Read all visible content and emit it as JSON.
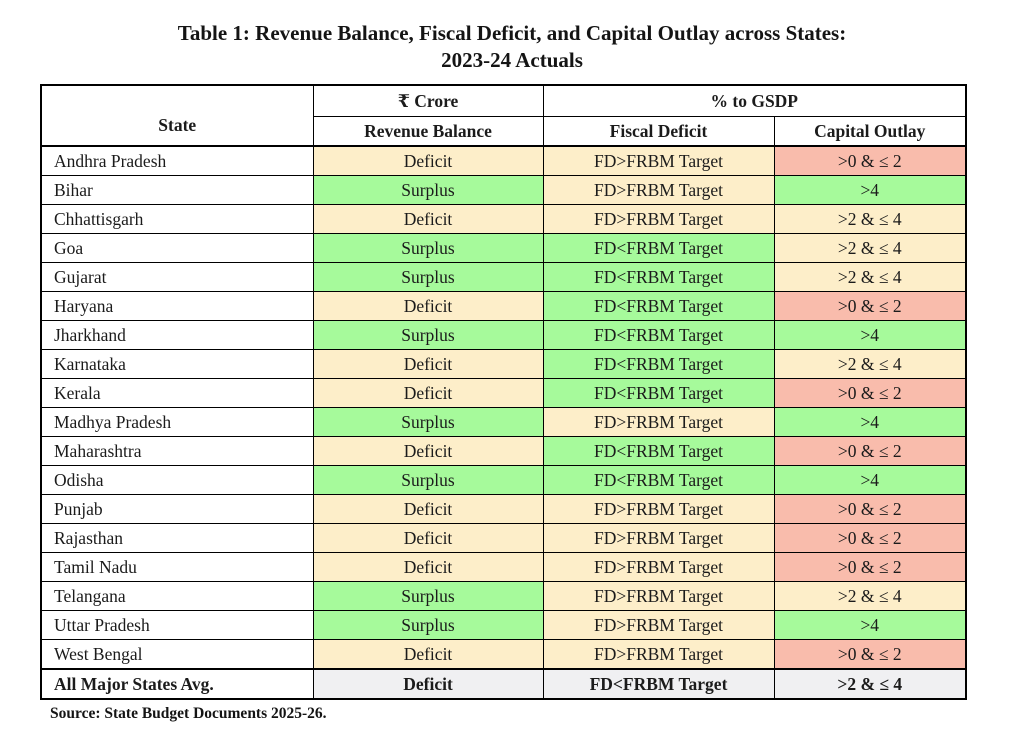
{
  "title": {
    "line1": "Table 1: Revenue Balance, Fiscal Deficit, and Capital Outlay across States:",
    "line2": "2023-24 Actuals"
  },
  "headers": {
    "state": "State",
    "crore_group": "₹ Crore",
    "gsdp_group": "% to GSDP",
    "revenue_balance": "Revenue Balance",
    "fiscal_deficit": "Fiscal Deficit",
    "capital_outlay": "Capital Outlay"
  },
  "rows": [
    {
      "state": "Andhra Pradesh",
      "revenue_balance": {
        "label": "Deficit",
        "color": "cream"
      },
      "fiscal_deficit": {
        "label": "FD>FRBM Target",
        "color": "cream"
      },
      "capital_outlay": {
        "label": ">0 & ≤ 2",
        "color": "salmon"
      }
    },
    {
      "state": "Bihar",
      "revenue_balance": {
        "label": "Surplus",
        "color": "green"
      },
      "fiscal_deficit": {
        "label": "FD>FRBM Target",
        "color": "cream"
      },
      "capital_outlay": {
        "label": ">4",
        "color": "green"
      }
    },
    {
      "state": "Chhattisgarh",
      "revenue_balance": {
        "label": "Deficit",
        "color": "cream"
      },
      "fiscal_deficit": {
        "label": "FD>FRBM Target",
        "color": "cream"
      },
      "capital_outlay": {
        "label": ">2 & ≤ 4",
        "color": "cream"
      }
    },
    {
      "state": "Goa",
      "revenue_balance": {
        "label": "Surplus",
        "color": "green"
      },
      "fiscal_deficit": {
        "label": "FD<FRBM Target",
        "color": "green"
      },
      "capital_outlay": {
        "label": ">2 & ≤ 4",
        "color": "cream"
      }
    },
    {
      "state": "Gujarat",
      "revenue_balance": {
        "label": "Surplus",
        "color": "green"
      },
      "fiscal_deficit": {
        "label": "FD<FRBM Target",
        "color": "green"
      },
      "capital_outlay": {
        "label": ">2 & ≤ 4",
        "color": "cream"
      }
    },
    {
      "state": "Haryana",
      "revenue_balance": {
        "label": "Deficit",
        "color": "cream"
      },
      "fiscal_deficit": {
        "label": "FD<FRBM Target",
        "color": "green"
      },
      "capital_outlay": {
        "label": ">0 & ≤ 2",
        "color": "salmon"
      }
    },
    {
      "state": "Jharkhand",
      "revenue_balance": {
        "label": "Surplus",
        "color": "green"
      },
      "fiscal_deficit": {
        "label": "FD<FRBM Target",
        "color": "green"
      },
      "capital_outlay": {
        "label": ">4",
        "color": "green"
      }
    },
    {
      "state": "Karnataka",
      "revenue_balance": {
        "label": "Deficit",
        "color": "cream"
      },
      "fiscal_deficit": {
        "label": "FD<FRBM Target",
        "color": "green"
      },
      "capital_outlay": {
        "label": ">2 & ≤ 4",
        "color": "cream"
      }
    },
    {
      "state": "Kerala",
      "revenue_balance": {
        "label": "Deficit",
        "color": "cream"
      },
      "fiscal_deficit": {
        "label": "FD<FRBM Target",
        "color": "green"
      },
      "capital_outlay": {
        "label": ">0 & ≤ 2",
        "color": "salmon"
      }
    },
    {
      "state": "Madhya Pradesh",
      "revenue_balance": {
        "label": "Surplus",
        "color": "green"
      },
      "fiscal_deficit": {
        "label": "FD>FRBM Target",
        "color": "cream"
      },
      "capital_outlay": {
        "label": ">4",
        "color": "green"
      }
    },
    {
      "state": "Maharashtra",
      "revenue_balance": {
        "label": "Deficit",
        "color": "cream"
      },
      "fiscal_deficit": {
        "label": "FD<FRBM Target",
        "color": "green"
      },
      "capital_outlay": {
        "label": ">0 & ≤ 2",
        "color": "salmon"
      }
    },
    {
      "state": "Odisha",
      "revenue_balance": {
        "label": "Surplus",
        "color": "green"
      },
      "fiscal_deficit": {
        "label": "FD<FRBM Target",
        "color": "green"
      },
      "capital_outlay": {
        "label": ">4",
        "color": "green"
      }
    },
    {
      "state": "Punjab",
      "revenue_balance": {
        "label": "Deficit",
        "color": "cream"
      },
      "fiscal_deficit": {
        "label": "FD>FRBM Target",
        "color": "cream"
      },
      "capital_outlay": {
        "label": ">0 & ≤ 2",
        "color": "salmon"
      }
    },
    {
      "state": "Rajasthan",
      "revenue_balance": {
        "label": "Deficit",
        "color": "cream"
      },
      "fiscal_deficit": {
        "label": "FD>FRBM Target",
        "color": "cream"
      },
      "capital_outlay": {
        "label": ">0 & ≤ 2",
        "color": "salmon"
      }
    },
    {
      "state": "Tamil Nadu",
      "revenue_balance": {
        "label": "Deficit",
        "color": "cream"
      },
      "fiscal_deficit": {
        "label": "FD>FRBM Target",
        "color": "cream"
      },
      "capital_outlay": {
        "label": ">0 & ≤ 2",
        "color": "salmon"
      }
    },
    {
      "state": "Telangana",
      "revenue_balance": {
        "label": "Surplus",
        "color": "green"
      },
      "fiscal_deficit": {
        "label": "FD>FRBM Target",
        "color": "cream"
      },
      "capital_outlay": {
        "label": ">2 & ≤ 4",
        "color": "cream"
      }
    },
    {
      "state": "Uttar Pradesh",
      "revenue_balance": {
        "label": "Surplus",
        "color": "green"
      },
      "fiscal_deficit": {
        "label": "FD>FRBM Target",
        "color": "cream"
      },
      "capital_outlay": {
        "label": ">4",
        "color": "green"
      }
    },
    {
      "state": "West Bengal",
      "revenue_balance": {
        "label": "Deficit",
        "color": "cream"
      },
      "fiscal_deficit": {
        "label": "FD>FRBM Target",
        "color": "cream"
      },
      "capital_outlay": {
        "label": ">0 & ≤ 2",
        "color": "salmon"
      }
    }
  ],
  "average_row": {
    "state": "All Major States Avg.",
    "revenue_balance": {
      "label": "Deficit",
      "color": "gray"
    },
    "fiscal_deficit": {
      "label": "FD<FRBM Target",
      "color": "gray"
    },
    "capital_outlay": {
      "label": ">2 & ≤ 4",
      "color": "gray"
    }
  },
  "source": "Source: State Budget Documents 2025-26.",
  "colors": {
    "palette": {
      "green": "#a6fa9b",
      "cream": "#fdeec9",
      "salmon": "#f9bcac",
      "gray": "#f0f0f2"
    },
    "border": "#000000"
  }
}
